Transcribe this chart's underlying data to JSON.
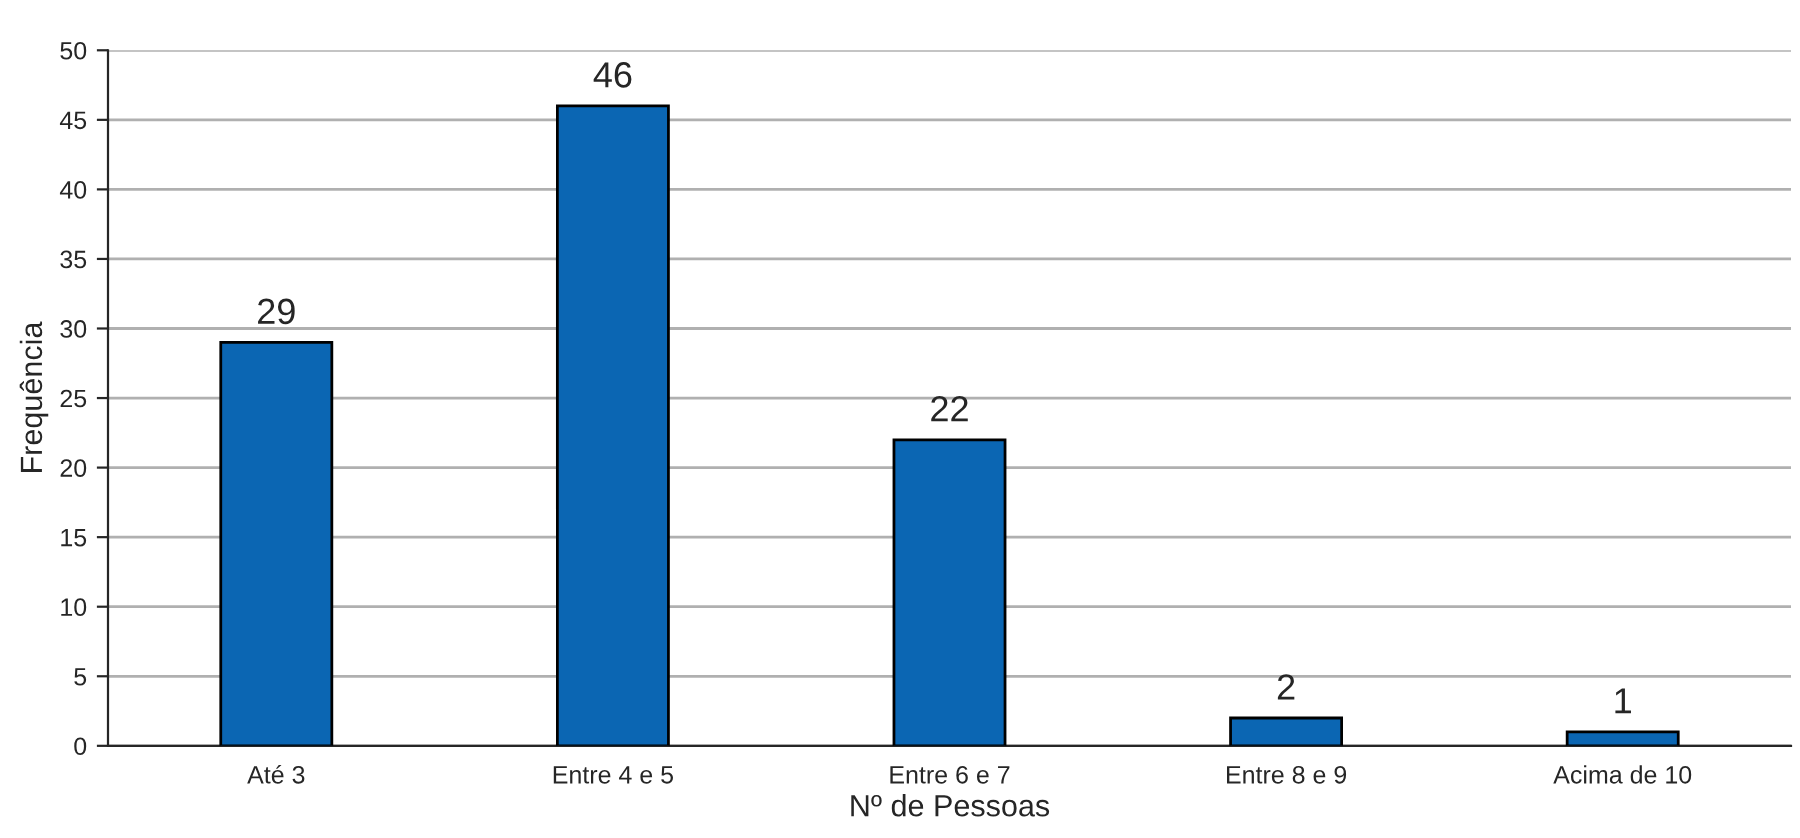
{
  "chart_data": {
    "type": "bar",
    "categories": [
      "Até 3",
      "Entre 4 e 5",
      "Entre 6 e 7",
      "Entre 8 e 9",
      "Acima de 10"
    ],
    "values": [
      29,
      46,
      22,
      2,
      1
    ],
    "color": "#0b66b3",
    "xlabel": "Nº de Pessoas",
    "ylabel": "Frequência",
    "ylim": [
      0,
      50
    ],
    "yticks": [
      0,
      5,
      10,
      15,
      20,
      25,
      30,
      35,
      40,
      45,
      50
    ],
    "grid": "y",
    "data_labels": true
  }
}
